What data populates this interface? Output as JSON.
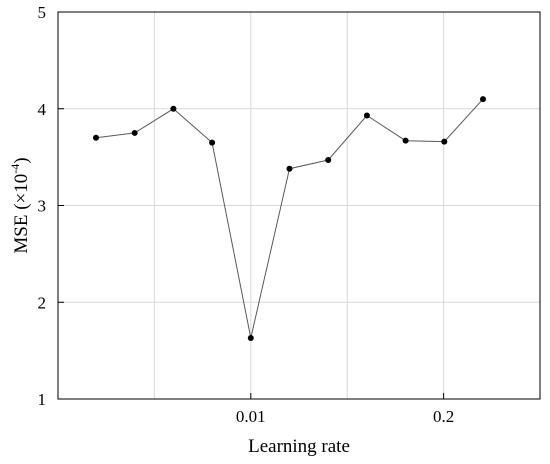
{
  "chart_data": {
    "type": "line",
    "xlabel": "Learning rate",
    "ylabel": "MSE (×10",
    "ylabel_sup": "-4",
    "ylabel_close": ")",
    "ylim": [
      1,
      5
    ],
    "yticks": [
      1,
      2,
      3,
      4,
      5
    ],
    "ytick_labels": [
      "1",
      "2",
      "3",
      "4",
      "5"
    ],
    "xtick_labels": [
      "0.01",
      "0.2"
    ],
    "grid": true,
    "line_color": "#595959",
    "marker_color": "#000000",
    "grid_color": "#d9d9d9",
    "series": [
      {
        "values": [
          3.7,
          3.75,
          4.0,
          3.65,
          1.63,
          3.38,
          3.47,
          3.93,
          3.67,
          3.66,
          4.1
        ]
      }
    ]
  }
}
